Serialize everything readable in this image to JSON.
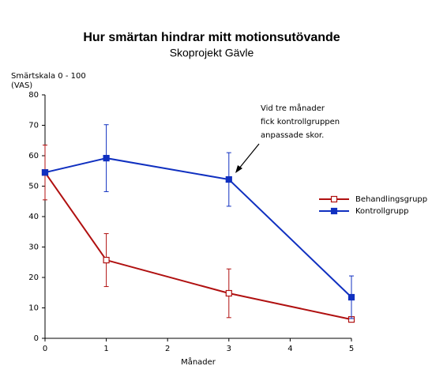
{
  "chart_data": {
    "type": "line",
    "title": "Hur smärtan hindrar mitt motionsutövande",
    "subtitle": "Skoprojekt Gävle",
    "y_label": [
      "Smärtskala 0 - 100",
      "(VAS)"
    ],
    "x_label": "Månader",
    "annotation": [
      "Vid tre månader",
      "fick kontrollgruppen",
      "anpassade skor."
    ],
    "x": [
      0,
      1,
      3,
      5
    ],
    "series": [
      {
        "name": "Behandlingsgrupp",
        "color": "#b01010",
        "marker": "open-square",
        "values": [
          54.5,
          25.7,
          14.8,
          6.2
        ],
        "errors": [
          9,
          8.7,
          8,
          null
        ]
      },
      {
        "name": "Kontrollgrupp",
        "color": "#1030c0",
        "marker": "filled-square",
        "values": [
          54.5,
          59.2,
          52.2,
          13.5
        ],
        "errors": [
          null,
          11,
          8.8,
          7
        ]
      }
    ],
    "xlim": [
      0,
      5
    ],
    "xticks": [
      0,
      1,
      2,
      3,
      4,
      5
    ],
    "ylim": [
      0,
      80
    ],
    "yticks": [
      0,
      10,
      20,
      30,
      40,
      50,
      60,
      70,
      80
    ],
    "legend": "right"
  }
}
